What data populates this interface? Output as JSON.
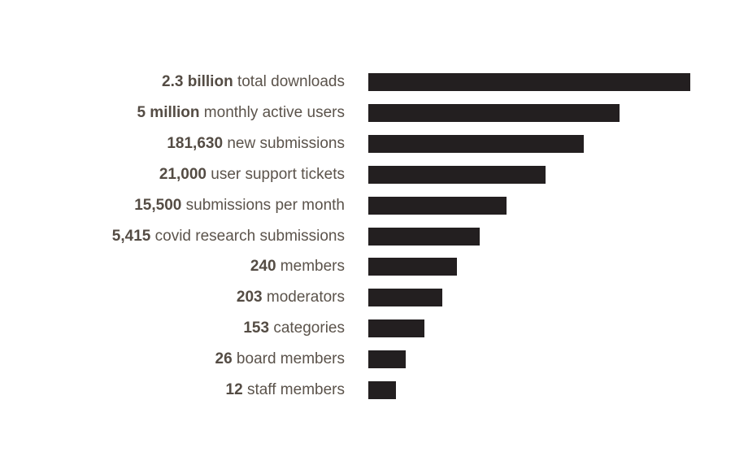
{
  "chart_data": {
    "type": "bar",
    "orientation": "horizontal",
    "title": "",
    "xlabel": "",
    "ylabel": "",
    "axes_visible": false,
    "grid": false,
    "bar_color": "#231f20",
    "label_color": "#5b534b",
    "categories": [
      {
        "number": "2.3 billion",
        "text": "total downloads"
      },
      {
        "number": "5 million",
        "text": "monthly active users"
      },
      {
        "number": "181,630",
        "text": "new submissions"
      },
      {
        "number": "21,000",
        "text": "user support tickets"
      },
      {
        "number": "15,500",
        "text": "submissions per month"
      },
      {
        "number": "5,415",
        "text": "covid research submissions"
      },
      {
        "number": "240",
        "text": "members"
      },
      {
        "number": "203",
        "text": "moderators"
      },
      {
        "number": "153",
        "text": "categories"
      },
      {
        "number": "26",
        "text": "board members"
      },
      {
        "number": "12",
        "text": "staff members"
      }
    ],
    "relative_bar_lengths": [
      1.0,
      0.78,
      0.67,
      0.55,
      0.43,
      0.345,
      0.275,
      0.23,
      0.175,
      0.115,
      0.085
    ]
  }
}
